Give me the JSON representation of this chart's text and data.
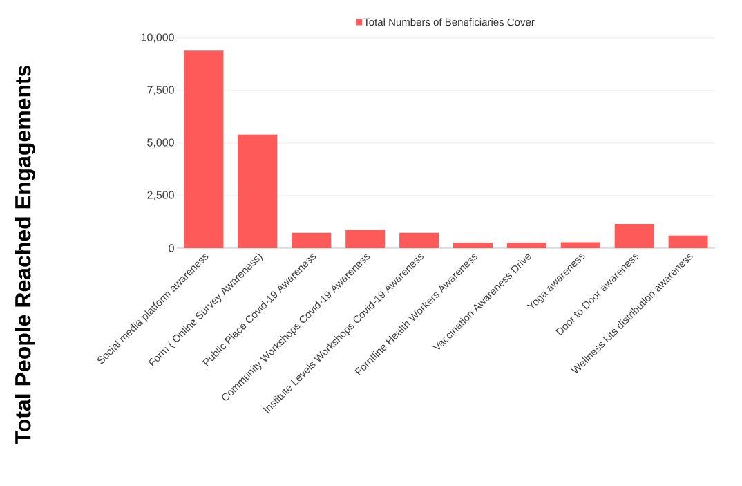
{
  "chart_data": {
    "type": "bar",
    "ylabel": "Total People Reached Engagements",
    "categories": [
      "Social media platform awareness",
      "Form ( Online Survey Awareness)",
      "Public Place Covid-19 Awareness",
      "Community Workshops Covid-19 Awareness",
      "Institute Levels Workshops Covid-19 Awareness",
      "Forntline Health Workers Awareness",
      "Vaccination Awareness Drive",
      "Yoga awareness",
      "Door to Door awareness",
      "Wellness kits distribution awareness"
    ],
    "series": [
      {
        "name": "Total Numbers of Beneficiaries Cover",
        "color": "#ff5a5a",
        "values": [
          9400,
          5400,
          730,
          870,
          730,
          260,
          260,
          280,
          1150,
          600
        ]
      }
    ],
    "ylim": [
      0,
      10000
    ],
    "yticks": [
      {
        "value": 0,
        "label": "0"
      },
      {
        "value": 2500,
        "label": "2,500"
      },
      {
        "value": 5000,
        "label": "5,000"
      },
      {
        "value": 7500,
        "label": "7,500"
      },
      {
        "value": 10000,
        "label": "10,000"
      }
    ],
    "grid": "y",
    "legend": "top"
  }
}
